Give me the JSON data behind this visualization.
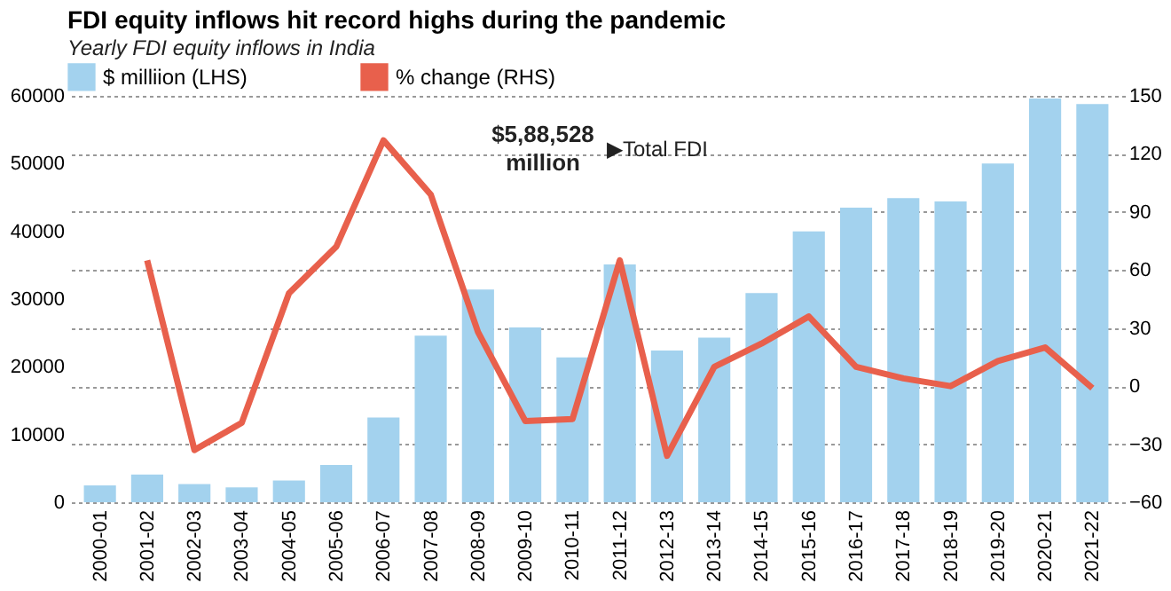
{
  "chart_data": {
    "type": "bar",
    "title": "FDI equity inflows hit record highs during the pandemic",
    "subtitle": "Yearly FDI equity inflows in India",
    "categories": [
      "2000-01",
      "2001-02",
      "2002-03",
      "2003-04",
      "2004-05",
      "2005-06",
      "2006-07",
      "2007-08",
      "2008-09",
      "2009-10",
      "2010-11",
      "2011-12",
      "2012-13",
      "2013-14",
      "2014-15",
      "2015-16",
      "2016-17",
      "2017-18",
      "2018-19",
      "2019-20",
      "2020-21",
      "2021-22"
    ],
    "series": [
      {
        "name": "$ milliion (LHS)",
        "color": "#a3d2ee",
        "values": [
          2500,
          4100,
          2700,
          2200,
          3200,
          5500,
          12500,
          24600,
          31400,
          25800,
          21400,
          35100,
          22400,
          24300,
          30900,
          40000,
          43500,
          44900,
          44400,
          50000,
          59600,
          58800
        ]
      },
      {
        "name": "% change (RHS)",
        "type": "line",
        "axis": "y2",
        "color": "#e8604c",
        "values": [
          null,
          65,
          -33,
          -19,
          48,
          72,
          127,
          99,
          28,
          -18,
          -17,
          65,
          -36,
          10,
          22,
          36,
          10,
          4,
          0,
          13,
          20,
          -1
        ]
      }
    ],
    "ylim": [
      0,
      60000
    ],
    "yticks": [
      0,
      10000,
      20000,
      30000,
      40000,
      50000,
      60000
    ],
    "y2lim": [
      -60,
      150
    ],
    "y2ticks": [
      -60,
      -30,
      0,
      30,
      60,
      90,
      120,
      150
    ],
    "grid": true,
    "legend": "top",
    "annotations": [
      "$5,88,528 million",
      "▶Total FDI"
    ]
  }
}
